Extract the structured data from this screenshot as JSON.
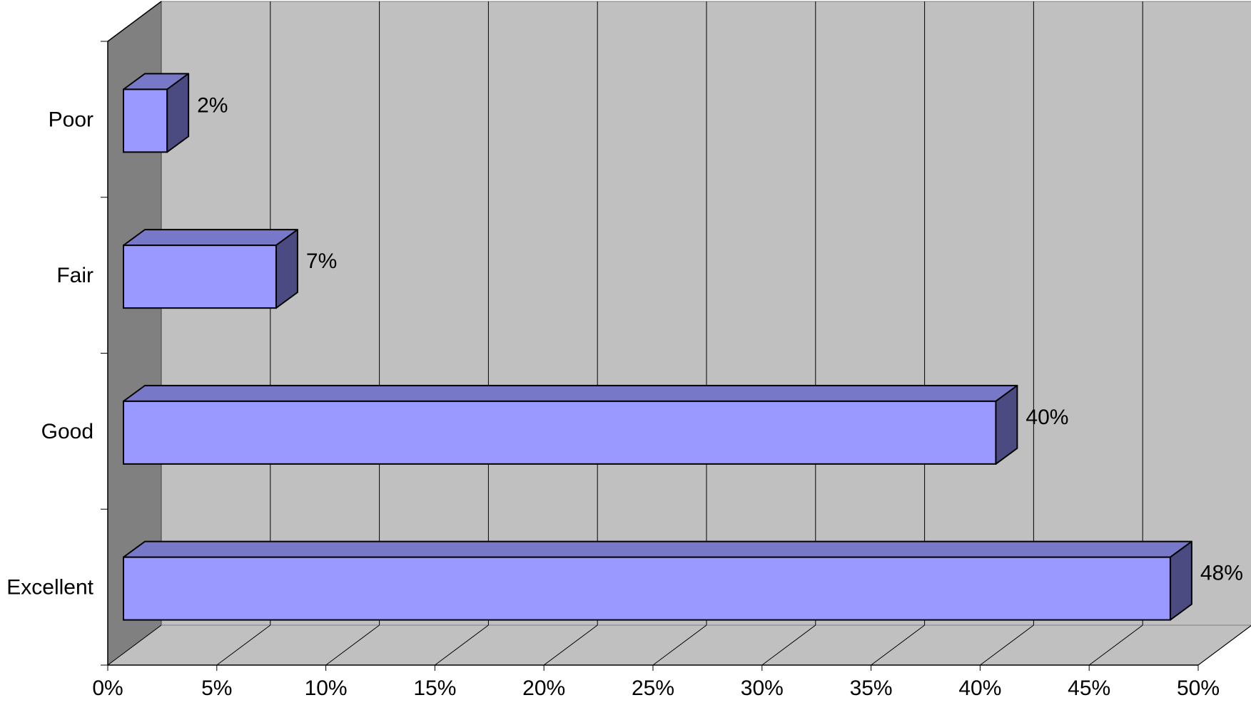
{
  "chart_data": {
    "type": "bar",
    "orientation": "horizontal",
    "style": "3d",
    "categories": [
      "Poor",
      "Fair",
      "Good",
      "Excellent"
    ],
    "values": [
      2,
      7,
      40,
      48
    ],
    "data_labels": [
      "2%",
      "7%",
      "40%",
      "48%"
    ],
    "xlim": [
      0,
      50
    ],
    "x_ticks": [
      "0%",
      "5%",
      "10%",
      "15%",
      "20%",
      "25%",
      "30%",
      "35%",
      "40%",
      "45%",
      "50%"
    ],
    "grid": true,
    "legend": "none",
    "colors": {
      "bar_front": "#9999ff",
      "bar_top": "#7878c8",
      "bar_side": "#4b4b82",
      "back_wall": "#c0c0c0",
      "side_wall": "#808080",
      "floor": "#c0c0c0"
    }
  }
}
